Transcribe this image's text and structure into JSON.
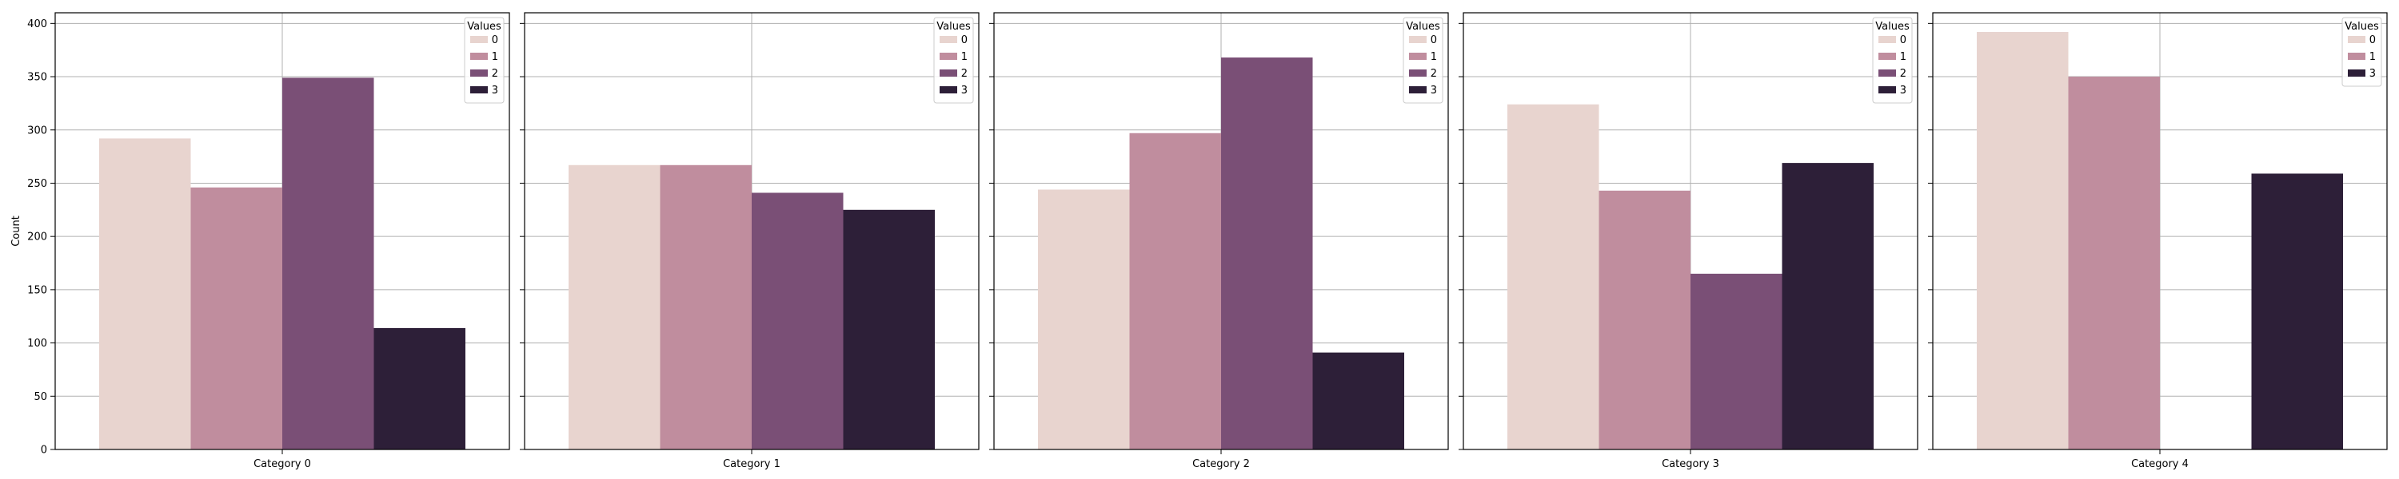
{
  "chart_data": {
    "type": "bar",
    "ylabel": "Count",
    "ylim": [
      0,
      410
    ],
    "yticks": [
      0,
      50,
      100,
      150,
      200,
      250,
      300,
      350,
      400
    ],
    "grid": true,
    "legend_title": "Values",
    "legend_position": "top-right",
    "hue_levels": [
      "0",
      "1",
      "2",
      "3"
    ],
    "colors": {
      "0": "#e8d4cf",
      "1": "#c08d9e",
      "2": "#7a4f76",
      "3": "#2d1f38"
    },
    "panels": [
      {
        "category": "Category 0",
        "series": [
          {
            "name": "0",
            "value": 292
          },
          {
            "name": "1",
            "value": 246
          },
          {
            "name": "2",
            "value": 349
          },
          {
            "name": "3",
            "value": 114
          }
        ]
      },
      {
        "category": "Category 1",
        "series": [
          {
            "name": "0",
            "value": 267
          },
          {
            "name": "1",
            "value": 267
          },
          {
            "name": "2",
            "value": 241
          },
          {
            "name": "3",
            "value": 225
          }
        ]
      },
      {
        "category": "Category 2",
        "series": [
          {
            "name": "0",
            "value": 244
          },
          {
            "name": "1",
            "value": 297
          },
          {
            "name": "2",
            "value": 368
          },
          {
            "name": "3",
            "value": 91
          }
        ]
      },
      {
        "category": "Category 3",
        "series": [
          {
            "name": "0",
            "value": 324
          },
          {
            "name": "1",
            "value": 243
          },
          {
            "name": "2",
            "value": 165
          },
          {
            "name": "3",
            "value": 269
          }
        ]
      },
      {
        "category": "Category 4",
        "series": [
          {
            "name": "0",
            "value": 392
          },
          {
            "name": "1",
            "value": 350
          },
          {
            "name": "3",
            "value": 259
          }
        ]
      }
    ]
  }
}
